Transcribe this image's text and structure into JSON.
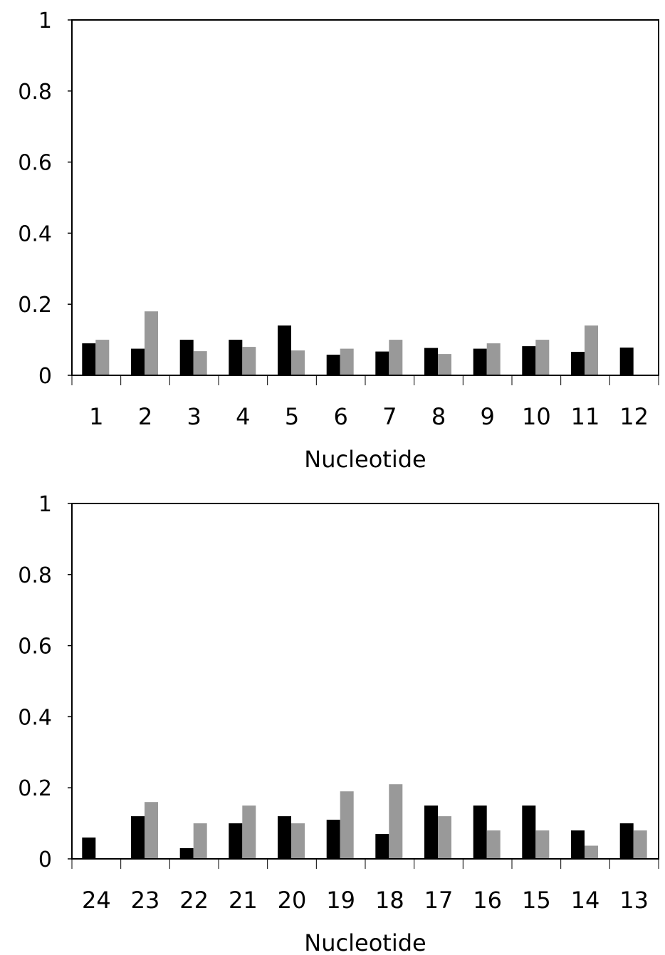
{
  "chart_data": [
    {
      "type": "bar",
      "xlabel": "Nucleotide",
      "ylabel": "",
      "ylim": [
        0,
        1
      ],
      "yticks": [
        "0",
        "0.2",
        "0.4",
        "0.6",
        "0.8",
        "1"
      ],
      "categories": [
        "1",
        "2",
        "3",
        "4",
        "5",
        "6",
        "7",
        "8",
        "9",
        "10",
        "11",
        "12"
      ],
      "grid": false,
      "legend": "none",
      "series": [
        {
          "color": "#000000",
          "values": [
            0.09,
            0.075,
            0.1,
            0.1,
            0.14,
            0.058,
            0.067,
            0.077,
            0.075,
            0.082,
            0.066,
            0.078
          ]
        },
        {
          "color": "#999999",
          "values": [
            0.1,
            0.18,
            0.068,
            0.08,
            0.07,
            0.075,
            0.1,
            0.06,
            0.09,
            0.1,
            0.14,
            0
          ]
        }
      ]
    },
    {
      "type": "bar",
      "xlabel": "Nucleotide",
      "ylabel": "",
      "ylim": [
        0,
        1
      ],
      "yticks": [
        "0",
        "0.2",
        "0.4",
        "0.6",
        "0.8",
        "1"
      ],
      "categories": [
        "24",
        "23",
        "22",
        "21",
        "20",
        "19",
        "18",
        "17",
        "16",
        "15",
        "14",
        "13"
      ],
      "grid": false,
      "legend": "none",
      "series": [
        {
          "color": "#000000",
          "values": [
            0.06,
            0.12,
            0.03,
            0.1,
            0.12,
            0.11,
            0.07,
            0.15,
            0.15,
            0.15,
            0.08,
            0.1
          ]
        },
        {
          "color": "#999999",
          "values": [
            0,
            0.16,
            0.1,
            0.15,
            0.1,
            0.19,
            0.21,
            0.12,
            0.08,
            0.08,
            0.037,
            0.08
          ]
        }
      ]
    }
  ]
}
